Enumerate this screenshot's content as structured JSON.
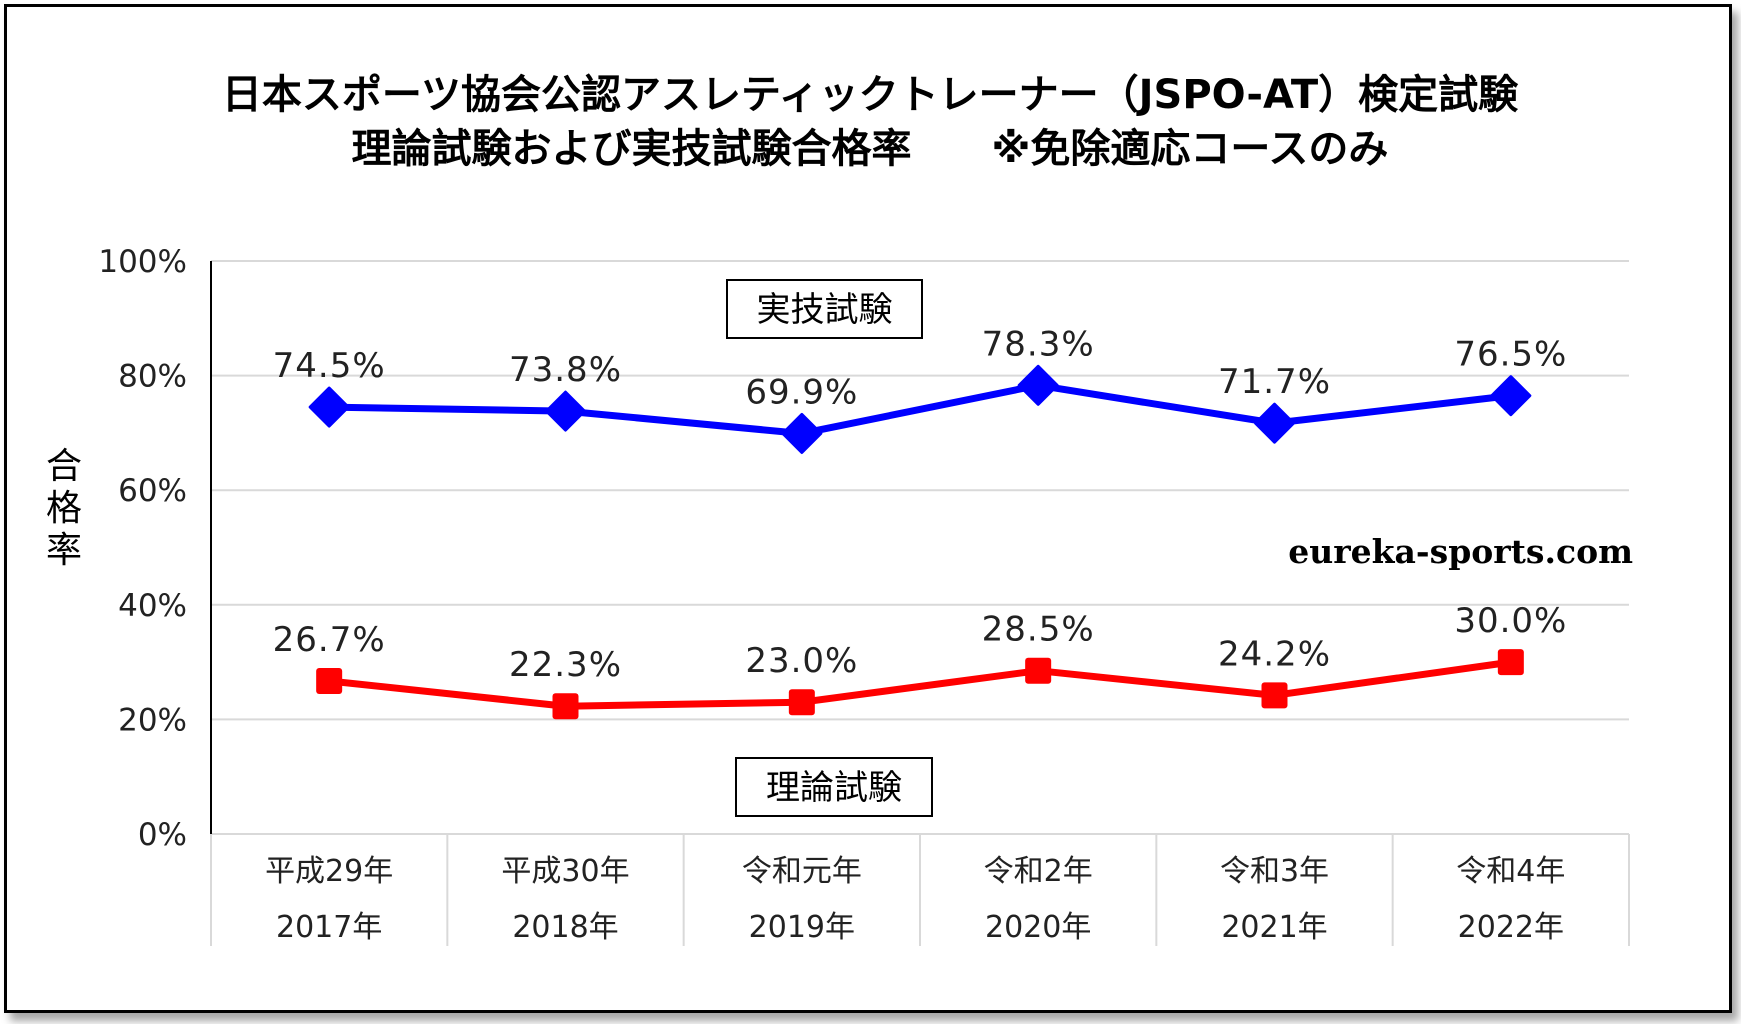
{
  "chart_data": {
    "type": "line",
    "title": [
      "日本スポーツ協会公認アスレティックトレーナー（JSPO-AT）検定試験",
      "理論試験および実技試験合格率　　※免除適応コースのみ"
    ],
    "ylabel": "合格率",
    "xlabel": "",
    "ylim": [
      0,
      100
    ],
    "yticks": [
      0,
      20,
      40,
      60,
      80,
      100
    ],
    "ytick_labels": [
      "0%",
      "20%",
      "40%",
      "60%",
      "80%",
      "100%"
    ],
    "grid": true,
    "categories": [
      [
        "平成29年",
        "2017年"
      ],
      [
        "平成30年",
        "2018年"
      ],
      [
        "令和元年",
        "2019年"
      ],
      [
        "令和2年",
        "2020年"
      ],
      [
        "令和3年",
        "2021年"
      ],
      [
        "令和4年",
        "2022年"
      ]
    ],
    "series": [
      {
        "name": "実技試験",
        "color": "#0000ff",
        "marker": "diamond",
        "values": [
          74.5,
          73.8,
          69.9,
          78.3,
          71.7,
          76.5
        ],
        "labels": [
          "74.5%",
          "73.8%",
          "69.9%",
          "78.3%",
          "71.7%",
          "76.5%"
        ]
      },
      {
        "name": "理論試験",
        "color": "#ff0000",
        "marker": "square",
        "values": [
          26.7,
          22.3,
          23.0,
          28.5,
          24.2,
          30.0
        ],
        "labels": [
          "26.7%",
          "22.3%",
          "23.0%",
          "28.5%",
          "24.2%",
          "30.0%"
        ]
      }
    ],
    "watermark": "eureka-sports.com"
  }
}
